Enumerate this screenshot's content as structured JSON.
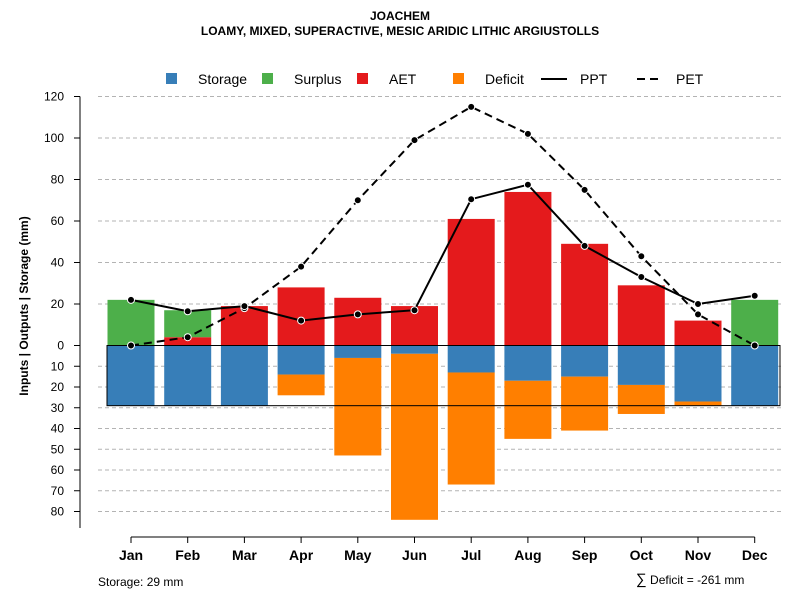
{
  "title": "JOACHEM",
  "subtitle": "LOAMY, MIXED, SUPERACTIVE, MESIC ARIDIC LITHIC ARGIUSTOLLS",
  "footer": {
    "storage_note": "Storage: 29 mm",
    "deficit_symbol": "∑",
    "deficit_note": "Deficit = -261 mm"
  },
  "colors": {
    "storage": "#377EB8",
    "surplus": "#4DAF4A",
    "aet": "#E41A1C",
    "deficit": "#FF7F00"
  },
  "chart_data": {
    "type": "bar",
    "title": "JOACHEM",
    "subtitle": "LOAMY, MIXED, SUPERACTIVE, MESIC ARIDIC LITHIC ARGIUSTOLLS",
    "ylabel": "Inputs | Outputs | Storage     (mm)",
    "xlabel": "",
    "categories": [
      "Jan",
      "Feb",
      "Mar",
      "Apr",
      "May",
      "Jun",
      "Jul",
      "Aug",
      "Sep",
      "Oct",
      "Nov",
      "Dec"
    ],
    "ylim_upper": [
      0,
      120
    ],
    "ylim_lower": [
      0,
      85
    ],
    "upper_ticks": [
      "0",
      "20",
      "40",
      "60",
      "80",
      "100",
      "120"
    ],
    "lower_ticks": [
      "10",
      "20",
      "30",
      "40",
      "50",
      "60",
      "70",
      "80"
    ],
    "storage_capacity": 29,
    "legend": [
      "Storage",
      "Surplus",
      "AET",
      "Deficit",
      "PPT",
      "PET"
    ],
    "series": [
      {
        "name": "Surplus",
        "values": [
          22,
          13,
          0,
          0,
          0,
          0,
          0,
          0,
          0,
          0,
          0,
          22
        ]
      },
      {
        "name": "AET",
        "values": [
          0,
          4,
          19,
          28,
          23,
          19,
          61,
          74,
          49,
          29,
          12,
          0
        ]
      },
      {
        "name": "Storage",
        "values": [
          29,
          29,
          29,
          14,
          6,
          4,
          13,
          17,
          15,
          19,
          27,
          29
        ]
      },
      {
        "name": "Deficit",
        "values": [
          0,
          0,
          0,
          10,
          47,
          80,
          54,
          28,
          26,
          14,
          2,
          0
        ]
      },
      {
        "name": "PPT",
        "values": [
          22,
          16.5,
          19,
          12,
          15,
          17,
          70.5,
          77.5,
          48,
          33,
          20,
          24
        ]
      },
      {
        "name": "PET",
        "values": [
          0,
          4,
          18,
          38,
          70,
          99,
          115,
          102,
          75,
          43,
          15,
          0
        ]
      }
    ]
  }
}
